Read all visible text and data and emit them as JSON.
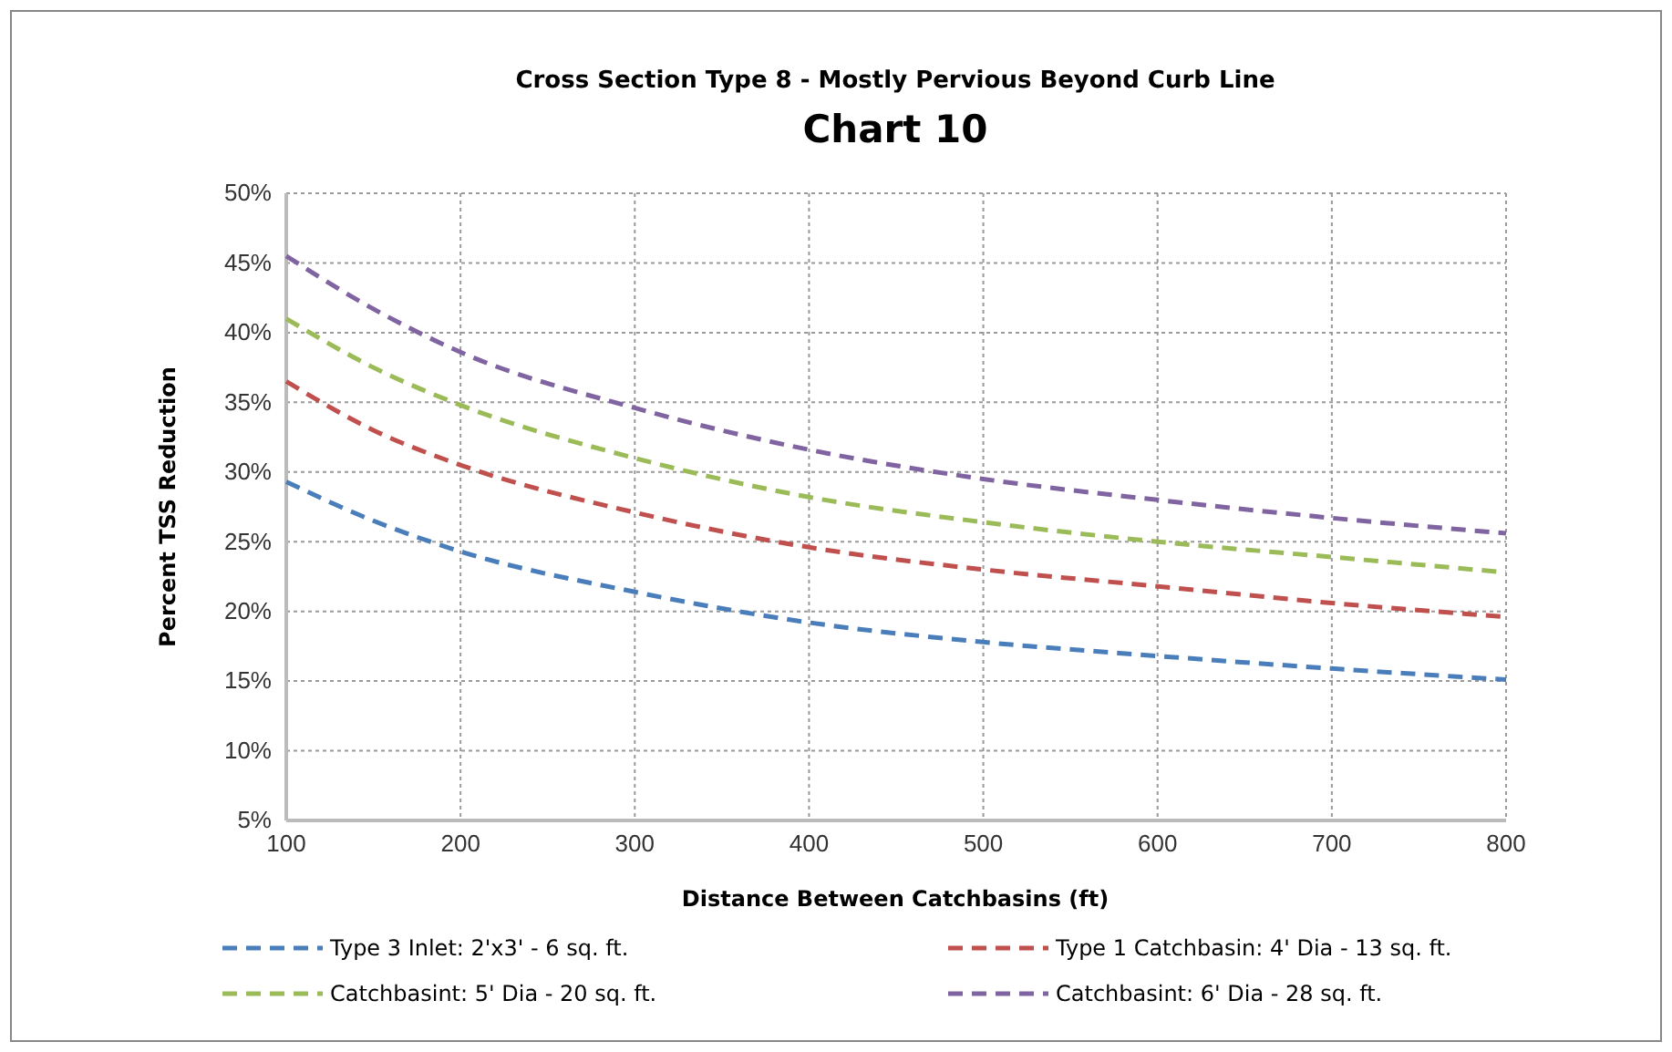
{
  "chart_data": {
    "type": "line",
    "title": "Cross Section Type 8 - Mostly Pervious Beyond Curb Line",
    "subtitle": "Chart 10",
    "xlabel": "Distance Between Catchbasins (ft)",
    "ylabel": "Percent TSS Reduction",
    "x": [
      100,
      150,
      200,
      300,
      400,
      500,
      600,
      700,
      800
    ],
    "xlim": [
      100,
      800
    ],
    "xticks": [
      100,
      200,
      300,
      400,
      500,
      600,
      700,
      800
    ],
    "ylim": [
      5,
      50
    ],
    "yticks": [
      {
        "value": 5,
        "label": "5%"
      },
      {
        "value": 10,
        "label": "10%"
      },
      {
        "value": 15,
        "label": "15%"
      },
      {
        "value": 20,
        "label": "20%"
      },
      {
        "value": 25,
        "label": "25%"
      },
      {
        "value": 30,
        "label": "30%"
      },
      {
        "value": 35,
        "label": "35%"
      },
      {
        "value": 40,
        "label": "40%"
      },
      {
        "value": 45,
        "label": "45%"
      },
      {
        "value": 50,
        "label": "50%"
      }
    ],
    "grid": true,
    "legend": "bottom",
    "line_style": "dashed",
    "marker": "none",
    "series": [
      {
        "name": "Type 3 Inlet: 2'x3' - 6 sq. ft.",
        "color": "#4a7ebb",
        "values": [
          29.3,
          26.5,
          24.3,
          21.4,
          19.2,
          17.8,
          16.8,
          15.9,
          15.1
        ]
      },
      {
        "name": "Type 1 Catchbasin: 4' Dia - 13 sq. ft.",
        "color": "#c0504d",
        "values": [
          36.5,
          33,
          30.5,
          27.1,
          24.6,
          23,
          21.8,
          20.6,
          19.6
        ]
      },
      {
        "name": "Catchbasint: 5' Dia - 20 sq. ft.",
        "color": "#9bbb59",
        "values": [
          41,
          37.5,
          34.8,
          31,
          28.2,
          26.4,
          25,
          23.9,
          22.8
        ]
      },
      {
        "name": "Catchbasint: 6' Dia - 28 sq. ft.",
        "color": "#8064a2",
        "values": [
          45.5,
          41.7,
          38.6,
          34.6,
          31.6,
          29.5,
          28,
          26.7,
          25.6
        ]
      }
    ]
  }
}
